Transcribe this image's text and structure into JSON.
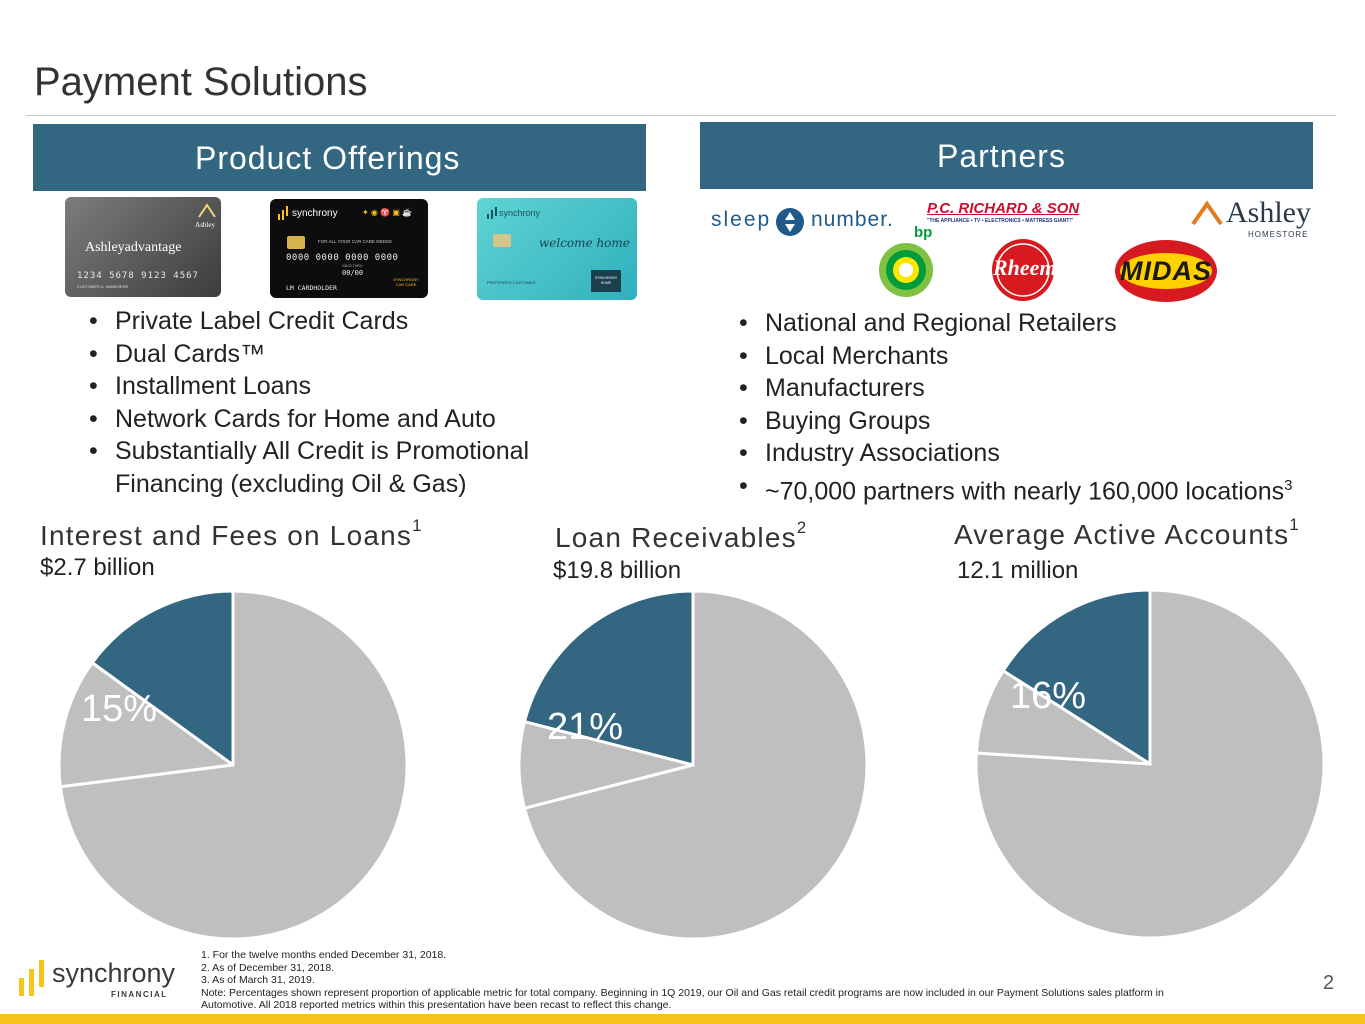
{
  "page": {
    "title": "Payment Solutions",
    "page_number": "2"
  },
  "products": {
    "header": "Product Offerings",
    "cards": [
      {
        "brand": "Ashley",
        "name": "Ashleyadvantage",
        "number": "1234 5678 9123 4567",
        "holder": "CUSTOMER A. NAMEHERE"
      },
      {
        "brand": "synchrony",
        "tagline": "FOR ALL YOUR CAR CARE NEEDS",
        "number": "0000 0000 0000 0000",
        "valid_label": "VALID THRU",
        "valid": "00/00",
        "holder": "LM CARDHOLDER",
        "badge": "SYNCHRONY CAR CARE"
      },
      {
        "brand": "synchrony",
        "script": "welcome home",
        "label": "PREFERRED CUSTOMER",
        "badge": "SYNCHRONY HOME"
      }
    ],
    "bullets": [
      "Private Label Credit Cards",
      "Dual Cards™",
      "Installment Loans",
      "Network Cards for Home and Auto",
      "Substantially All Credit is Promotional",
      "Financing (excluding Oil & Gas)"
    ]
  },
  "partners": {
    "header": "Partners",
    "logos": {
      "sleep_number_a": "sleep",
      "sleep_number_b": "number.",
      "pc_richard": "P.C. RICHARD & SON",
      "pc_richard_tag": "\"THE APPLIANCE • TV • ELECTRONICS • MATTRESS GIANT!\"",
      "ashley": "Ashley",
      "ashley_sub": "HOMESTORE",
      "bp": "bp",
      "rheem": "Rheem",
      "midas": "MIDAS"
    },
    "bullets": [
      "National and Regional Retailers",
      "Local Merchants",
      "Manufacturers",
      "Buying Groups",
      "Industry Associations",
      "~70,000 partners with nearly 160,000 locations"
    ],
    "last_sup": "3"
  },
  "metrics": [
    {
      "label": "Interest and Fees on Loans",
      "sup": "1",
      "value": "$2.7 billion",
      "pct_label": "15%"
    },
    {
      "label": "Loan Receivables",
      "sup": "2",
      "value": "$19.8 billion",
      "pct_label": "21%"
    },
    {
      "label": "Average Active Accounts",
      "sup": "1",
      "value": "12.1 million",
      "pct_label": "16%"
    }
  ],
  "colors": {
    "navy": "#336681",
    "gray": "#bfbfbf",
    "gold": "#f7c31c"
  },
  "chart_data": [
    {
      "type": "pie",
      "slices": [
        {
          "label": "15%",
          "value": 15,
          "color": "#336681"
        },
        {
          "value": 12,
          "color": "#bfbfbf"
        },
        {
          "value": 73,
          "color": "#bfbfbf"
        }
      ]
    },
    {
      "type": "pie",
      "slices": [
        {
          "label": "21%",
          "value": 21,
          "color": "#336681"
        },
        {
          "value": 8,
          "color": "#bfbfbf"
        },
        {
          "value": 71,
          "color": "#bfbfbf"
        }
      ]
    },
    {
      "type": "pie",
      "slices": [
        {
          "label": "16%",
          "value": 16,
          "color": "#336681"
        },
        {
          "value": 8,
          "color": "#bfbfbf"
        },
        {
          "value": 76,
          "color": "#bfbfbf"
        }
      ]
    }
  ],
  "footer": {
    "logo_name": "synchrony",
    "logo_sub": "FINANCIAL",
    "notes": [
      "1.  For the twelve months ended December 31, 2018.",
      "2.  As of December 31, 2018.",
      "3.  As of March 31, 2019.",
      "Note: Percentages shown represent proportion of applicable metric for total company. Beginning in 1Q 2019, our Oil and Gas retail credit programs are now included in our Payment Solutions sales platform in",
      "Automotive. All 2018 reported metrics within this presentation have been recast to reflect this change."
    ]
  }
}
